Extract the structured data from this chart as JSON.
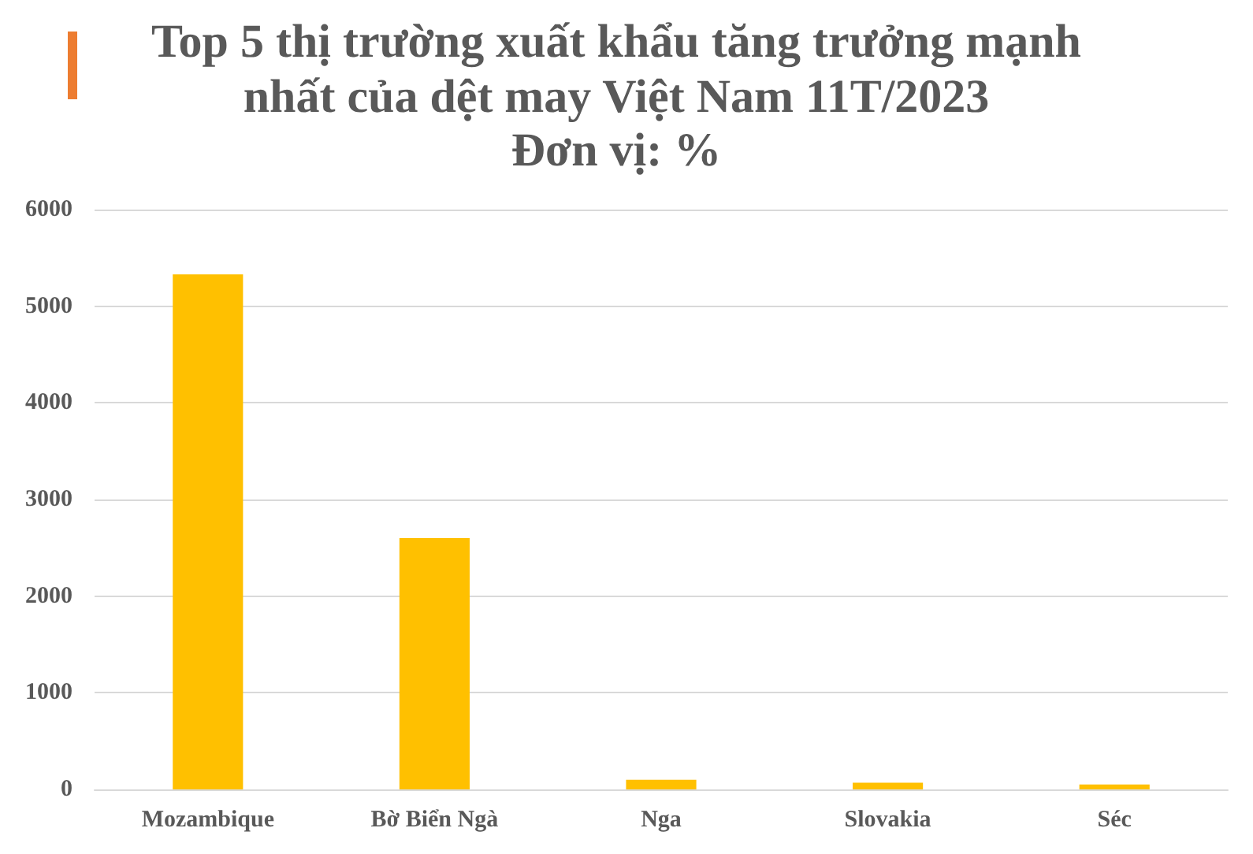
{
  "chart_data": {
    "type": "bar",
    "title": "Top 5 thị trường xuất khẩu tăng trưởng mạnh nhất của dệt may Việt Nam 11T/2023",
    "subtitle": "Đơn vị: %",
    "categories": [
      "Mozambique",
      "Bờ Biển Ngà",
      "Nga",
      "Slovakia",
      "Séc"
    ],
    "values": [
      5330,
      2600,
      100,
      70,
      50
    ],
    "color": "#ffc000",
    "ylim": [
      0,
      6000
    ],
    "yticks": [
      0,
      1000,
      2000,
      3000,
      4000,
      5000,
      6000
    ],
    "grid": "y"
  }
}
